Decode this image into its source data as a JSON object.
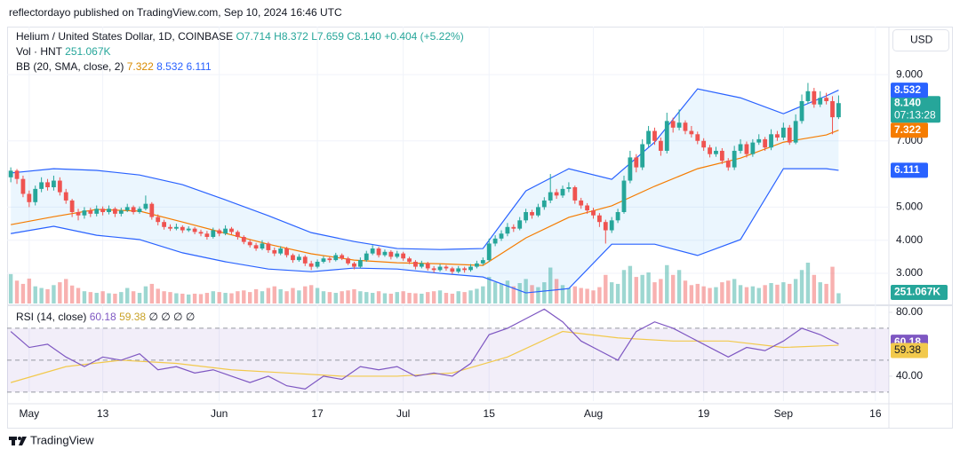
{
  "header": {
    "publisher": "reflectordayo published on TradingView.com, Sep 10, 2024 16:46 UTC",
    "currency": "USD",
    "footer": "TradingView"
  },
  "chart_data": [
    {
      "type": "candlestick",
      "title": "Helium / United States Dollar, 1D, COINBASE",
      "ohlc": [
        "O7.714",
        "H8.372",
        "L7.659",
        "C8.140"
      ],
      "change": "+0.404 (+5.22%)",
      "last_close_label": "8.140",
      "countdown": "07:13:28",
      "up_color": "#26a69a",
      "down_color": "#ef5350",
      "xlim": [
        -0.6,
        143.2
      ],
      "ylim": [
        2.09,
        10.45
      ],
      "yticks": [
        {
          "value": 9,
          "label": "9.000"
        },
        {
          "value": 7,
          "label": "7.000"
        },
        {
          "value": 5,
          "label": "5.000"
        },
        {
          "value": 4,
          "label": "4.000"
        },
        {
          "value": 3,
          "label": "3.000"
        }
      ],
      "xticks": [
        {
          "value": 3,
          "label": "May"
        },
        {
          "value": 15,
          "label": "13"
        },
        {
          "value": 34,
          "label": "Jun"
        },
        {
          "value": 50,
          "label": "17"
        },
        {
          "value": 64,
          "label": "Jul"
        },
        {
          "value": 78,
          "label": "15"
        },
        {
          "value": 95,
          "label": "Aug"
        },
        {
          "value": 113,
          "label": "19"
        },
        {
          "value": 126,
          "label": "Sep"
        },
        {
          "value": 141,
          "label": "16"
        }
      ],
      "grid": true,
      "candles": [
        [
          5.9,
          6.2,
          5.75,
          6.1
        ],
        [
          6.1,
          6.15,
          5.7,
          5.85
        ],
        [
          5.85,
          5.95,
          5.3,
          5.4
        ],
        [
          5.4,
          5.5,
          5.0,
          5.15
        ],
        [
          5.15,
          5.65,
          5.05,
          5.55
        ],
        [
          5.55,
          5.9,
          5.45,
          5.75
        ],
        [
          5.75,
          5.85,
          5.5,
          5.6
        ],
        [
          5.6,
          5.95,
          5.5,
          5.8
        ],
        [
          5.8,
          5.9,
          5.35,
          5.45
        ],
        [
          5.45,
          5.55,
          5.1,
          5.2
        ],
        [
          5.2,
          5.25,
          4.7,
          4.85
        ],
        [
          4.85,
          4.95,
          4.6,
          4.75
        ],
        [
          4.75,
          5.0,
          4.65,
          4.9
        ],
        [
          4.9,
          4.98,
          4.7,
          4.8
        ],
        [
          4.8,
          5.05,
          4.72,
          4.95
        ],
        [
          4.95,
          5.02,
          4.75,
          4.85
        ],
        [
          4.85,
          5.05,
          4.78,
          4.95
        ],
        [
          4.95,
          5.0,
          4.7,
          4.8
        ],
        [
          4.8,
          4.98,
          4.72,
          4.9
        ],
        [
          4.9,
          5.1,
          4.85,
          5.0
        ],
        [
          5.0,
          5.05,
          4.78,
          4.85
        ],
        [
          4.85,
          5.02,
          4.8,
          4.95
        ],
        [
          4.95,
          5.35,
          4.9,
          5.1
        ],
        [
          5.1,
          5.15,
          4.62,
          4.7
        ],
        [
          4.7,
          4.78,
          4.45,
          4.55
        ],
        [
          4.55,
          4.62,
          4.32,
          4.4
        ],
        [
          4.4,
          4.48,
          4.28,
          4.35
        ],
        [
          4.35,
          4.5,
          4.3,
          4.4
        ],
        [
          4.4,
          4.45,
          4.22,
          4.3
        ],
        [
          4.3,
          4.42,
          4.25,
          4.35
        ],
        [
          4.35,
          4.4,
          4.18,
          4.25
        ],
        [
          4.25,
          4.32,
          4.12,
          4.2
        ],
        [
          4.2,
          4.28,
          4.02,
          4.1
        ],
        [
          4.1,
          4.38,
          4.05,
          4.3
        ],
        [
          4.3,
          4.35,
          4.12,
          4.2
        ],
        [
          4.2,
          4.45,
          4.15,
          4.35
        ],
        [
          4.35,
          4.4,
          4.18,
          4.25
        ],
        [
          4.25,
          4.3,
          4.02,
          4.1
        ],
        [
          4.1,
          4.15,
          3.88,
          3.95
        ],
        [
          3.95,
          4.02,
          3.78,
          3.85
        ],
        [
          3.85,
          3.92,
          3.68,
          3.75
        ],
        [
          3.75,
          4.0,
          3.7,
          3.9
        ],
        [
          3.9,
          3.95,
          3.62,
          3.7
        ],
        [
          3.7,
          3.78,
          3.52,
          3.6
        ],
        [
          3.6,
          3.82,
          3.55,
          3.75
        ],
        [
          3.75,
          3.8,
          3.48,
          3.55
        ],
        [
          3.55,
          3.6,
          3.32,
          3.4
        ],
        [
          3.4,
          3.58,
          3.35,
          3.5
        ],
        [
          3.5,
          3.55,
          3.22,
          3.3
        ],
        [
          3.3,
          3.38,
          3.1,
          3.2
        ],
        [
          3.2,
          3.42,
          3.15,
          3.35
        ],
        [
          3.35,
          3.52,
          3.3,
          3.45
        ],
        [
          3.45,
          3.5,
          3.32,
          3.4
        ],
        [
          3.4,
          3.62,
          3.36,
          3.55
        ],
        [
          3.55,
          3.6,
          3.4,
          3.45
        ],
        [
          3.45,
          3.5,
          3.25,
          3.3
        ],
        [
          3.3,
          3.35,
          3.12,
          3.2
        ],
        [
          3.2,
          3.48,
          3.15,
          3.4
        ],
        [
          3.4,
          3.68,
          3.35,
          3.6
        ],
        [
          3.6,
          3.85,
          3.55,
          3.75
        ],
        [
          3.75,
          3.8,
          3.48,
          3.55
        ],
        [
          3.55,
          3.72,
          3.5,
          3.65
        ],
        [
          3.65,
          3.7,
          3.42,
          3.5
        ],
        [
          3.5,
          3.68,
          3.45,
          3.6
        ],
        [
          3.6,
          3.65,
          3.38,
          3.45
        ],
        [
          3.45,
          3.5,
          3.28,
          3.35
        ],
        [
          3.35,
          3.4,
          3.12,
          3.2
        ],
        [
          3.2,
          3.38,
          3.15,
          3.3
        ],
        [
          3.3,
          3.35,
          3.08,
          3.15
        ],
        [
          3.15,
          3.22,
          3.02,
          3.1
        ],
        [
          3.1,
          3.28,
          3.05,
          3.2
        ],
        [
          3.2,
          3.25,
          3.08,
          3.15
        ],
        [
          3.15,
          3.2,
          2.98,
          3.05
        ],
        [
          3.05,
          3.22,
          3.0,
          3.15
        ],
        [
          3.15,
          3.2,
          3.02,
          3.1
        ],
        [
          3.1,
          3.28,
          3.05,
          3.2
        ],
        [
          3.2,
          3.38,
          3.15,
          3.3
        ],
        [
          3.3,
          3.48,
          3.25,
          3.4
        ],
        [
          3.4,
          4.05,
          3.35,
          3.9
        ],
        [
          3.9,
          4.15,
          3.82,
          4.05
        ],
        [
          4.05,
          4.3,
          3.98,
          4.2
        ],
        [
          4.2,
          4.52,
          4.12,
          4.4
        ],
        [
          4.4,
          4.48,
          4.25,
          4.35
        ],
        [
          4.35,
          4.7,
          4.3,
          4.6
        ],
        [
          4.6,
          4.95,
          4.52,
          4.85
        ],
        [
          4.85,
          4.92,
          4.65,
          4.75
        ],
        [
          4.75,
          5.1,
          4.7,
          5.0
        ],
        [
          5.0,
          5.3,
          4.92,
          5.2
        ],
        [
          5.2,
          6.0,
          5.12,
          5.45
        ],
        [
          5.45,
          5.55,
          5.25,
          5.35
        ],
        [
          5.35,
          5.65,
          5.28,
          5.55
        ],
        [
          5.55,
          5.75,
          5.45,
          5.6
        ],
        [
          5.6,
          5.65,
          5.1,
          5.2
        ],
        [
          5.2,
          5.28,
          4.95,
          5.05
        ],
        [
          5.05,
          5.12,
          4.8,
          4.9
        ],
        [
          4.9,
          4.98,
          4.65,
          4.75
        ],
        [
          4.75,
          4.82,
          4.4,
          4.55
        ],
        [
          4.55,
          4.62,
          3.9,
          4.3
        ],
        [
          4.3,
          4.7,
          4.22,
          4.6
        ],
        [
          4.6,
          4.95,
          4.52,
          4.85
        ],
        [
          4.85,
          5.95,
          4.8,
          5.8
        ],
        [
          5.8,
          6.7,
          5.72,
          6.5
        ],
        [
          6.5,
          6.6,
          6.05,
          6.2
        ],
        [
          6.2,
          7.05,
          6.12,
          6.9
        ],
        [
          6.9,
          7.45,
          6.82,
          7.3
        ],
        [
          7.3,
          7.4,
          6.88,
          7.0
        ],
        [
          7.0,
          7.1,
          6.55,
          6.7
        ],
        [
          6.7,
          7.85,
          6.62,
          7.6
        ],
        [
          7.6,
          7.7,
          7.25,
          7.4
        ],
        [
          7.4,
          7.95,
          7.32,
          7.55
        ],
        [
          7.55,
          7.62,
          7.2,
          7.3
        ],
        [
          7.3,
          7.45,
          7.1,
          7.2
        ],
        [
          7.2,
          7.28,
          6.9,
          7.0
        ],
        [
          7.0,
          7.08,
          6.7,
          6.8
        ],
        [
          6.8,
          6.88,
          6.5,
          6.6
        ],
        [
          6.6,
          6.82,
          6.52,
          6.7
        ],
        [
          6.7,
          6.78,
          6.3,
          6.4
        ],
        [
          6.4,
          6.48,
          6.1,
          6.2
        ],
        [
          6.2,
          6.85,
          6.12,
          6.7
        ],
        [
          6.7,
          7.05,
          6.62,
          6.9
        ],
        [
          6.9,
          6.98,
          6.5,
          6.6
        ],
        [
          6.6,
          7.05,
          6.52,
          6.95
        ],
        [
          6.95,
          7.2,
          6.88,
          7.05
        ],
        [
          7.05,
          7.12,
          6.7,
          6.8
        ],
        [
          6.8,
          7.35,
          6.72,
          7.2
        ],
        [
          7.2,
          7.3,
          7.0,
          7.1
        ],
        [
          7.1,
          7.55,
          7.02,
          7.4
        ],
        [
          7.4,
          7.48,
          6.88,
          6.95
        ],
        [
          6.95,
          7.8,
          6.9,
          7.6
        ],
        [
          7.6,
          8.4,
          7.52,
          8.2
        ],
        [
          8.2,
          8.75,
          8.12,
          8.5
        ],
        [
          8.5,
          8.6,
          8.0,
          8.1
        ],
        [
          8.1,
          8.5,
          8.02,
          8.3
        ],
        [
          8.3,
          8.45,
          8.1,
          8.2
        ],
        [
          8.2,
          8.35,
          7.2,
          7.714
        ],
        [
          7.714,
          8.372,
          7.659,
          8.14
        ]
      ],
      "volume": {
        "label": "Vol · HNT",
        "last_label": "251.067K",
        "values": [
          720,
          560,
          480,
          610,
          420,
          380,
          350,
          450,
          520,
          600,
          440,
          380,
          300,
          280,
          260,
          300,
          250,
          240,
          280,
          380,
          300,
          260,
          420,
          480,
          360,
          300,
          280,
          250,
          240,
          220,
          240,
          230,
          260,
          300,
          280,
          260,
          250,
          300,
          320,
          280,
          350,
          300,
          380,
          420,
          350,
          300,
          380,
          320,
          420,
          450,
          380,
          300,
          280,
          260,
          300,
          320,
          350,
          300,
          280,
          260,
          300,
          250,
          240,
          280,
          300,
          260,
          250,
          240,
          280,
          300,
          320,
          260,
          240,
          300,
          280,
          320,
          360,
          420,
          650,
          520,
          480,
          560,
          420,
          500,
          600,
          450,
          400,
          520,
          880,
          600,
          450,
          380,
          420,
          380,
          360,
          320,
          400,
          700,
          520,
          480,
          820,
          920,
          650,
          700,
          760,
          520,
          600,
          940,
          700,
          820,
          560,
          450,
          480,
          420,
          380,
          400,
          520,
          560,
          600,
          450,
          400,
          420,
          380,
          450,
          500,
          460,
          520,
          480,
          600,
          820,
          1000,
          700,
          520,
          480,
          900,
          251.067
        ]
      },
      "bb_label": "BB (20, SMA, close, 2)",
      "bb_fill": "rgba(33,150,243,0.09)",
      "series_x": [
        0,
        7,
        14,
        21,
        28,
        35,
        42,
        49,
        56,
        63,
        70,
        77,
        84,
        91,
        98,
        105,
        112,
        119,
        126,
        133,
        135
      ],
      "series": [
        {
          "color": "#f57c00",
          "values": [
            4.47,
            4.71,
            4.93,
            4.88,
            4.55,
            4.21,
            3.88,
            3.59,
            3.4,
            3.32,
            3.29,
            3.24,
            4.07,
            4.69,
            5.04,
            5.63,
            6.16,
            6.48,
            6.96,
            7.18,
            7.322
          ]
        },
        {
          "color": "#2962ff",
          "values": [
            6.03,
            6.16,
            6.11,
            5.97,
            5.68,
            5.22,
            4.74,
            4.23,
            3.96,
            3.75,
            3.72,
            3.75,
            5.49,
            6.16,
            5.84,
            6.96,
            8.57,
            8.3,
            7.82,
            8.36,
            8.532
          ]
        },
        {
          "color": "#2962ff",
          "values": [
            4.2,
            4.42,
            4.15,
            4.02,
            3.62,
            3.35,
            3.13,
            3.05,
            3.16,
            3.13,
            3.0,
            2.89,
            2.41,
            2.54,
            3.88,
            3.88,
            3.54,
            4.02,
            6.16,
            6.16,
            6.111
          ]
        }
      ]
    },
    {
      "type": "line",
      "title": "RSI (14, close)",
      "extra": "∅ ∅ ∅ ∅",
      "xlim": [
        -0.6,
        143.2
      ],
      "ylim": [
        24.4,
        83.3
      ],
      "yticks": [
        {
          "value": 80,
          "label": "80.00"
        },
        {
          "value": 40,
          "label": "40.00"
        }
      ],
      "levels": [
        70,
        50,
        30
      ],
      "band_fill": "rgba(126,87,194,0.1)",
      "series": [
        {
          "color": "#7e57c2",
          "x": [
            0,
            3,
            6,
            9,
            12,
            15,
            18,
            21,
            24,
            27,
            30,
            33,
            36,
            39,
            42,
            45,
            48,
            51,
            54,
            57,
            60,
            63,
            66,
            69,
            72,
            75,
            78,
            81,
            84,
            87,
            90,
            93,
            96,
            99,
            102,
            105,
            108,
            111,
            114,
            117,
            120,
            123,
            126,
            129,
            132,
            135
          ],
          "values": [
            68,
            58,
            60,
            52,
            46,
            52,
            50,
            54,
            44,
            46,
            42,
            44,
            40,
            36,
            40,
            34,
            32,
            40,
            38,
            46,
            44,
            46,
            40,
            42,
            40,
            48,
            66,
            70,
            76,
            82,
            74,
            62,
            56,
            50,
            68,
            74,
            70,
            64,
            58,
            52,
            58,
            56,
            62,
            70,
            66,
            60.18
          ]
        },
        {
          "color": "#f2c94c",
          "x": [
            0,
            9,
            18,
            27,
            36,
            45,
            54,
            63,
            72,
            81,
            90,
            99,
            108,
            117,
            126,
            135
          ],
          "values": [
            36,
            46,
            50,
            48,
            44,
            42,
            40,
            40,
            42,
            52,
            68,
            64,
            62,
            62,
            58,
            59.38
          ]
        }
      ]
    }
  ]
}
